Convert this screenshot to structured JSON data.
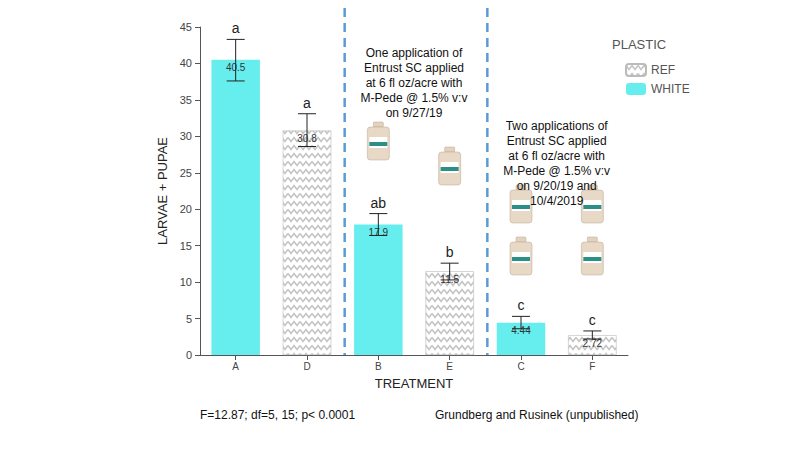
{
  "chart_data": {
    "type": "bar",
    "x_label": "TREATMENT",
    "y_label": "LARVAE + PUPAE",
    "categories": [
      "A",
      "D",
      "B",
      "E",
      "C",
      "F"
    ],
    "series": [
      {
        "name": "REF",
        "color": "#c4c4c4",
        "marker": "zigzag",
        "values": [
          null,
          30.8,
          null,
          11.5,
          null,
          2.72
        ],
        "error_low": [
          null,
          28.6,
          null,
          10.3,
          null,
          2.2
        ],
        "error_high": [
          null,
          33.1,
          null,
          12.6,
          null,
          3.3
        ]
      },
      {
        "name": "WHITE",
        "color": "#66eeee",
        "marker": "solid",
        "values": [
          40.5,
          null,
          17.9,
          null,
          4.44,
          null
        ],
        "error_low": [
          37.6,
          null,
          16.4,
          null,
          3.6,
          null
        ],
        "error_high": [
          43.3,
          null,
          19.4,
          null,
          5.3,
          null
        ]
      }
    ],
    "letters": [
      "a",
      "a",
      "ab",
      "b",
      "c",
      "c"
    ],
    "ylim": [
      0,
      45
    ],
    "yticks": [
      0,
      5,
      10,
      15,
      20,
      25,
      30,
      35,
      40,
      45
    ],
    "grid": false,
    "legend": "right",
    "legend_title": "PLASTIC",
    "data_labels": true,
    "annotations": [
      [
        "One application of",
        "Entrust SC applied",
        "at 6 fl oz/acre with",
        "M-Pede @ 1.5% v:v",
        "on 9/27/19"
      ],
      [
        "Two applications of",
        "Entrust SC applied",
        "at 6 fl oz/acre with",
        "M-Pede @ 1.5% v:v",
        "on 9/20/19 and",
        "10/4/2019"
      ]
    ],
    "notes": [
      "F=12.87; df=5, 15; p< 0.0001",
      "Grundberg and Rusinek (unpublished)"
    ]
  }
}
